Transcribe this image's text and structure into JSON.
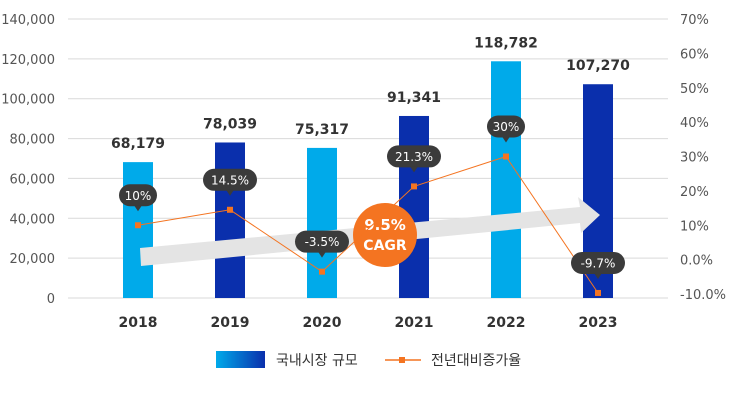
{
  "chart_data": {
    "type": "bar+line",
    "categories": [
      "2018",
      "2019",
      "2020",
      "2021",
      "2022",
      "2023"
    ],
    "series": [
      {
        "name": "국내시장 규모",
        "type": "bar",
        "axis": "left",
        "values": [
          68179,
          78039,
          75317,
          91341,
          118782,
          107270
        ],
        "value_labels": [
          "68,179",
          "78,039",
          "75,317",
          "91,341",
          "118,782",
          "107,270"
        ]
      },
      {
        "name": "전년대비증가율",
        "type": "line",
        "axis": "right",
        "values": [
          10,
          14.5,
          -3.5,
          21.3,
          30,
          -9.7
        ],
        "value_labels": [
          "10%",
          "14.5%",
          "-3.5%",
          "21.3%",
          "30%",
          "-9.7%"
        ]
      }
    ],
    "left_axis": {
      "ylim": [
        0,
        140000
      ],
      "ticks": [
        "0",
        "20,000",
        "40,000",
        "60,000",
        "80,000",
        "100,000",
        "120,000",
        "140,000"
      ]
    },
    "right_axis": {
      "ylim": [
        -10,
        70
      ],
      "ticks": [
        "-10.0%",
        "0.0%",
        "10%",
        "20%",
        "30%",
        "40%",
        "50%",
        "60%",
        "70%"
      ]
    },
    "annotation": {
      "line1": "9.5%",
      "line2": "CAGR"
    },
    "grid": true,
    "legend_position": "bottom",
    "colors": {
      "bar_light": "#00aaea",
      "bar_dark": "#0a2fac",
      "line": "#f47421",
      "callout": "#3b3b3b",
      "cagr": "#f47421",
      "arrow": "#e4e4e4",
      "grid": "#d9d9d9"
    }
  }
}
